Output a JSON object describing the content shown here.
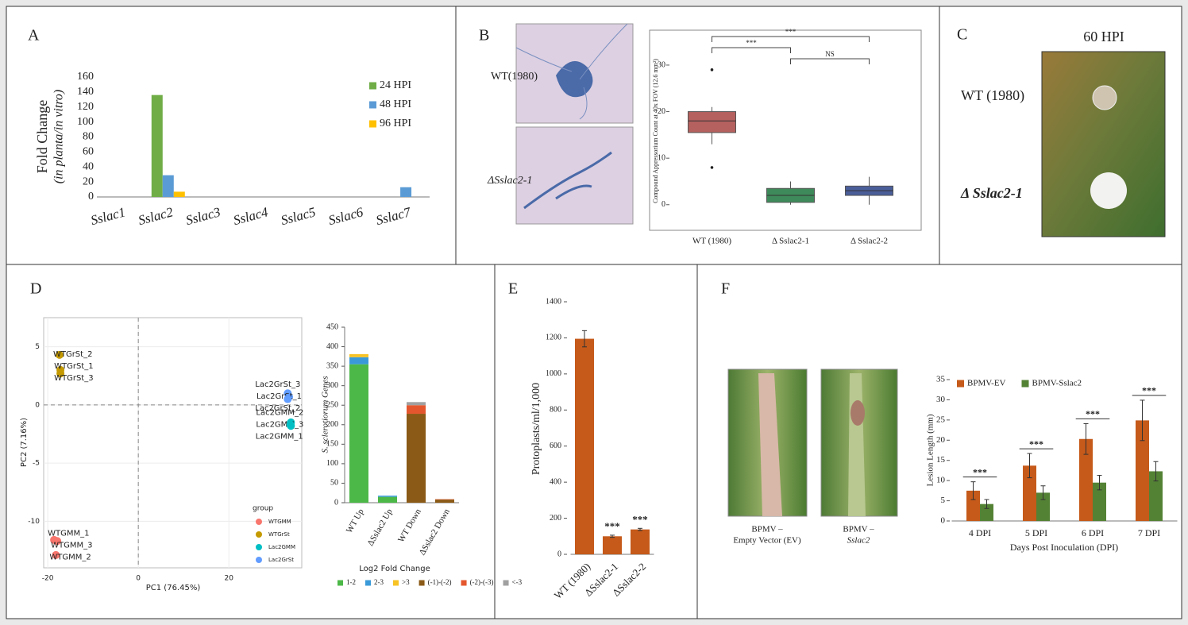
{
  "chart_data": [
    {
      "type": "bar",
      "panel": "A",
      "ylabel": "Fold Change",
      "ylabel_note": "(in planta/in vitro)",
      "categories": [
        "Sslac1",
        "Sslac2",
        "Sslac3",
        "Sslac4",
        "Sslac5",
        "Sslac6",
        "Sslac7"
      ],
      "series": [
        {
          "name": "24 HPI",
          "color": "#70ad47",
          "values": [
            0,
            136,
            0,
            0,
            0,
            0,
            0
          ]
        },
        {
          "name": "48 HPI",
          "color": "#5b9bd5",
          "values": [
            0,
            29,
            0,
            0,
            0,
            0,
            13
          ]
        },
        {
          "name": "96 HPI",
          "color": "#ffc000",
          "values": [
            0,
            7,
            0,
            0,
            0,
            0,
            0
          ]
        }
      ],
      "ylim": [
        0,
        160
      ],
      "yticks": [
        0,
        20,
        40,
        60,
        80,
        100,
        120,
        140,
        160
      ],
      "legend": "right"
    },
    {
      "type": "box",
      "panel": "B",
      "image_labels": [
        "WT(1980)",
        "ΔSslac2-1"
      ],
      "ylabel": "Compound Appressorium Count at 40x FOV (12.6 mm²)",
      "categories": [
        "WT (1980)",
        "Δ Sslac2-1",
        "Δ Sslac2-2"
      ],
      "colors": [
        "#b5615f",
        "#3f8a5a",
        "#4a5e9a"
      ],
      "boxes": [
        {
          "whisker_low": 13,
          "q1": 15.5,
          "median": 18,
          "q3": 20,
          "whisker_high": 21,
          "outliers": [
            29,
            8
          ]
        },
        {
          "whisker_low": 0,
          "q1": 0.5,
          "median": 2,
          "q3": 3.5,
          "whisker_high": 5,
          "outliers": []
        },
        {
          "whisker_low": 0,
          "q1": 2,
          "median": 3,
          "q3": 4,
          "whisker_high": 6,
          "outliers": []
        }
      ],
      "ylim": [
        -5.5,
        37.5
      ],
      "yticks": [
        0,
        10,
        20,
        30
      ],
      "annotations": [
        {
          "text": "***",
          "from": 0,
          "to": 2
        },
        {
          "text": "***",
          "from": 0,
          "to": 1
        },
        {
          "text": "NS",
          "from": 1,
          "to": 2
        }
      ]
    },
    {
      "type": "scatter",
      "panel": "D",
      "xlabel": "PC1 (76.45%)",
      "ylabel": "PC2 (7.16%)",
      "xlim": [
        -20.9,
        36.1
      ],
      "xticks": [
        -20,
        0,
        20
      ],
      "ylim": [
        -14,
        7.5
      ],
      "yticks": [
        -10,
        -5,
        0,
        5
      ],
      "grid": true,
      "origin_lines": "dashed",
      "legend": "bottom-right",
      "legend_title": "group",
      "series": [
        {
          "name": "WTGMM",
          "color": "#f8766d",
          "x": [
            -18.6,
            -17.9,
            -18.2
          ],
          "y": [
            -11.6,
            -11.7,
            -12.9
          ],
          "labels": [
            "WTGMM_1",
            "WTGMM_3",
            "WTGMM_2"
          ]
        },
        {
          "name": "WTGrSt",
          "color": "#c49a00",
          "x": [
            -17.4,
            -17.2,
            -17.2
          ],
          "y": [
            4.3,
            3.0,
            2.7
          ],
          "labels": [
            "WTGrSt_2",
            "WTGrSt_1",
            "WTGrSt_3"
          ]
        },
        {
          "name": "Lac2GMM",
          "color": "#00bfc4",
          "x": [
            33.7,
            33.7,
            33.6
          ],
          "y": [
            -1.5,
            -1.8,
            -1.7
          ],
          "labels": [
            "Lac2GMM_2",
            "Lac2GMM_3",
            "Lac2GMM_1"
          ]
        },
        {
          "name": "Lac2GrSt",
          "color": "#619cff",
          "x": [
            33.0,
            33.3,
            33.0
          ],
          "y": [
            1.0,
            0.7,
            0.5
          ],
          "labels": [
            "Lac2GrSt_3",
            "Lac2GrSt_1",
            "Lac2GrSt_2"
          ]
        }
      ]
    },
    {
      "type": "bar",
      "stacked": true,
      "ylabel": "S. sclerotiorum Genes",
      "legend": "bottom",
      "legend_title": "Log2 Fold Change",
      "categories": [
        "WT Up",
        "ΔSslac2 Up",
        "WT Down",
        "ΔSslac2 Down"
      ],
      "series": [
        {
          "name": "1-2",
          "color": "#4cb848",
          "values": [
            355,
            15,
            0,
            0
          ]
        },
        {
          "name": "2-3",
          "color": "#3a9ad9",
          "values": [
            18,
            3,
            0,
            0
          ]
        },
        {
          "name": ">3",
          "color": "#f7c325",
          "values": [
            8,
            0,
            0,
            0
          ]
        },
        {
          "name": "(-1)-(-2)",
          "color": "#8b5a16",
          "values": [
            0,
            0,
            228,
            8
          ]
        },
        {
          "name": "(-2)-(-3)",
          "color": "#e4572e",
          "values": [
            0,
            0,
            22,
            1
          ]
        },
        {
          "name": "<-3",
          "color": "#a0a0a0",
          "values": [
            0,
            0,
            8,
            0
          ]
        }
      ],
      "ylim": [
        0,
        450
      ],
      "yticks": [
        0,
        50,
        100,
        150,
        200,
        250,
        300,
        350,
        400,
        450
      ]
    },
    {
      "type": "bar",
      "panel": "E",
      "ylabel": "Protoplasts/ml/1,000",
      "categories": [
        "WT (1980)",
        "ΔSslac2-1",
        "ΔSslac2-2"
      ],
      "series": [
        {
          "color": "#c55a1a",
          "values": [
            1195,
            100,
            138
          ],
          "errors": [
            45,
            6,
            6
          ]
        }
      ],
      "significance": [
        null,
        "***",
        "***"
      ],
      "ylim": [
        0,
        1400
      ],
      "yticks": [
        0,
        200,
        400,
        600,
        800,
        1000,
        1200,
        1400
      ]
    },
    {
      "type": "bar",
      "panel": "F",
      "photo_captions": [
        [
          "BPMV –",
          "Empty Vector (EV)"
        ],
        [
          "BPMV –",
          "Sslac2"
        ]
      ],
      "xlabel": "Days Post Inoculation (DPI)",
      "ylabel": "Lesion Length (mm)",
      "categories": [
        "4 DPI",
        "5 DPI",
        "6 DPI",
        "7 DPI"
      ],
      "series": [
        {
          "name": "BPMV-EV",
          "color": "#c55a1a",
          "values": [
            7.5,
            13.7,
            20.3,
            24.9
          ],
          "errors": [
            2.2,
            3,
            3.8,
            5
          ]
        },
        {
          "name": "BPMV-Sslac2",
          "color": "#548235",
          "values": [
            4.2,
            7,
            9.5,
            12.3
          ],
          "errors": [
            1.1,
            1.7,
            1.8,
            2.4
          ]
        }
      ],
      "significance": [
        "***",
        "***",
        "***",
        "***"
      ],
      "ylim": [
        0,
        35
      ],
      "yticks": [
        0,
        5,
        10,
        15,
        20,
        25,
        30,
        35
      ],
      "legend": "top"
    }
  ],
  "panel_c": {
    "panel": "C",
    "title": "60 HPI",
    "labels": [
      "WT (1980)",
      "Δ Sslac2-1"
    ]
  }
}
